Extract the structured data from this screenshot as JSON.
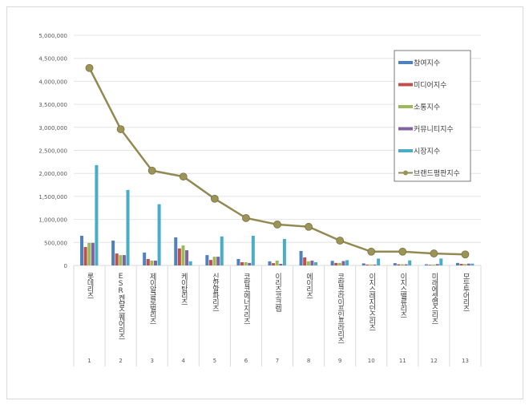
{
  "chart_data": {
    "type": "bar",
    "categories": [
      "롯데리츠",
      "ESR켄달스퀘어리츠",
      "제이알글로벌리츠",
      "케이탑리츠",
      "신한알파리츠",
      "코람코에너지리츠",
      "이리츠코크렙",
      "에이리츠",
      "코람코라이프인프라리츠",
      "이지스레지던스리츠",
      "이지스밸류리츠",
      "미래에셋맵스리츠",
      "모두투어리츠"
    ],
    "category_numbers": [
      "1",
      "2",
      "3",
      "4",
      "5",
      "6",
      "7",
      "8",
      "9",
      "10",
      "11",
      "12",
      "13"
    ],
    "ylim": [
      0,
      5000000
    ],
    "yticks": [
      "0",
      "500,000",
      "1,000,000",
      "1,500,000",
      "2,000,000",
      "2,500,000",
      "3,000,000",
      "3,500,000",
      "4,000,000",
      "4,500,000",
      "5,000,000"
    ],
    "grid": true,
    "legend_placement": "top-right",
    "series": [
      {
        "name": "참여지수",
        "type": "bar",
        "color": "#4f81bd",
        "values": [
          645000,
          540000,
          280000,
          610000,
          225000,
          140000,
          90000,
          315000,
          100000,
          45000,
          50000,
          25000,
          55000
        ]
      },
      {
        "name": "미디어지수",
        "type": "bar",
        "color": "#c0504d",
        "values": [
          400000,
          260000,
          140000,
          370000,
          120000,
          70000,
          50000,
          175000,
          55000,
          20000,
          25000,
          15000,
          35000
        ]
      },
      {
        "name": "소통지수",
        "type": "bar",
        "color": "#9bbb59",
        "values": [
          490000,
          225000,
          105000,
          435000,
          190000,
          70000,
          105000,
          90000,
          55000,
          20000,
          25000,
          20000,
          30000
        ]
      },
      {
        "name": "커뮤니티지수",
        "type": "bar",
        "color": "#8064a2",
        "values": [
          490000,
          225000,
          105000,
          330000,
          190000,
          55000,
          35000,
          105000,
          95000,
          20000,
          25000,
          30000,
          40000
        ]
      },
      {
        "name": "시장지수",
        "type": "bar",
        "color": "#4bacc6",
        "values": [
          2180000,
          1640000,
          1330000,
          90000,
          630000,
          645000,
          575000,
          70000,
          115000,
          150000,
          110000,
          150000,
          40000
        ]
      },
      {
        "name": "브랜드평판지수",
        "type": "line",
        "color": "#938953",
        "values": [
          4290000,
          2960000,
          2060000,
          1930000,
          1450000,
          1030000,
          890000,
          840000,
          540000,
          300000,
          300000,
          260000,
          240000
        ]
      }
    ]
  }
}
